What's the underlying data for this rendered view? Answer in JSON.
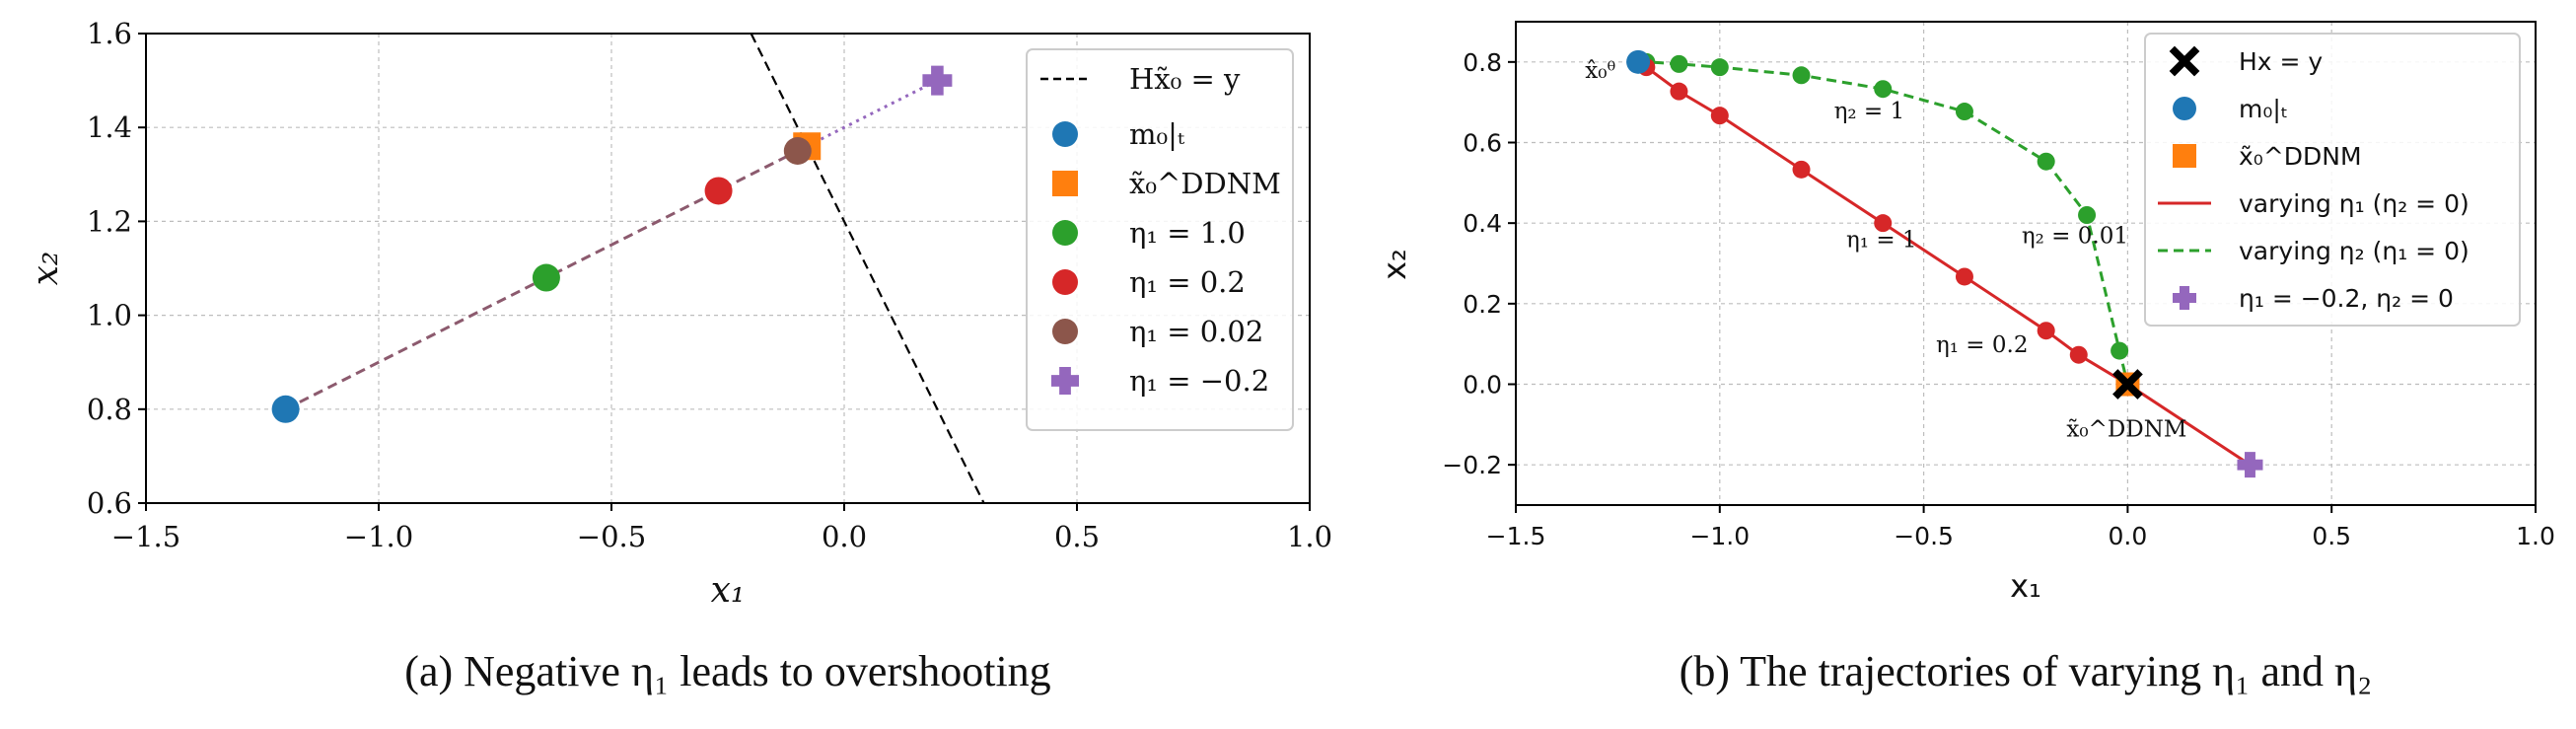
{
  "chart_data": [
    {
      "type": "scatter",
      "panel": "a",
      "caption": "(a) Negative η₁ leads to overshooting",
      "xlabel": "x₁",
      "ylabel": "x₂",
      "xlim": [
        -1.5,
        1.0
      ],
      "ylim": [
        0.6,
        1.6
      ],
      "xticks": [
        "−1.5",
        "−1.0",
        "−0.5",
        "0.0",
        "0.5",
        "1.0"
      ],
      "yticks": [
        "0.6",
        "0.8",
        "1.0",
        "1.2",
        "1.4",
        "1.6"
      ],
      "grid": true,
      "legend_position": "upper-right",
      "lines": [
        {
          "name": "Hx̃₀ = y",
          "style": "dashed",
          "color": "#000000",
          "x": [
            -0.2,
            0.3
          ],
          "y": [
            1.6,
            0.6
          ]
        },
        {
          "name": "trajectory",
          "style": "dashed",
          "color": "#8c5a6e",
          "x": [
            -1.2,
            -0.08
          ],
          "y": [
            0.8,
            1.36
          ]
        },
        {
          "name": "extension",
          "style": "dotted",
          "color": "#9467bd",
          "x": [
            -0.08,
            0.2
          ],
          "y": [
            1.36,
            1.5
          ]
        }
      ],
      "points": [
        {
          "name": "m₀|ₜ",
          "marker": "circle",
          "color": "#1f77b4",
          "x": -1.2,
          "y": 0.8
        },
        {
          "name": "x̃₀^DDNM",
          "marker": "square",
          "color": "#ff7f0e",
          "x": -0.08,
          "y": 1.36
        },
        {
          "name": "η₁ = 1.0",
          "marker": "circle",
          "color": "#2ca02c",
          "x": -0.64,
          "y": 1.08
        },
        {
          "name": "η₁ = 0.2",
          "marker": "circle",
          "color": "#d62728",
          "x": -0.27,
          "y": 1.265
        },
        {
          "name": "η₁ = 0.02",
          "marker": "circle",
          "color": "#8c564b",
          "x": -0.1,
          "y": 1.35
        },
        {
          "name": "η₁ = −0.2",
          "marker": "plus",
          "color": "#9467bd",
          "x": 0.2,
          "y": 1.5
        }
      ]
    },
    {
      "type": "line",
      "panel": "b",
      "caption": "(b) The trajectories of varying η₁ and η₂",
      "xlabel": "x₁",
      "ylabel": "x₂",
      "xlim": [
        -1.5,
        1.0
      ],
      "ylim": [
        -0.3,
        0.9
      ],
      "xticks": [
        "−1.5",
        "−1.0",
        "−0.5",
        "0.0",
        "0.5",
        "1.0"
      ],
      "yticks": [
        "−0.2",
        "0.0",
        "0.2",
        "0.4",
        "0.6",
        "0.8"
      ],
      "grid": true,
      "legend_position": "upper-right",
      "series": [
        {
          "name": "varying η₁ (η₂ = 0)",
          "style": "solid",
          "color": "#d62728",
          "x": [
            -1.2,
            -1.18,
            -1.1,
            -1.0,
            -0.8,
            -0.6,
            -0.4,
            -0.2,
            -0.12,
            0.0,
            0.3
          ],
          "y": [
            0.8,
            0.787,
            0.727,
            0.667,
            0.533,
            0.4,
            0.267,
            0.133,
            0.073,
            0.0,
            -0.2
          ],
          "marked": [
            1,
            2,
            3,
            4,
            5,
            6,
            7,
            8
          ]
        },
        {
          "name": "varying η₂ (η₁ = 0)",
          "style": "dashed",
          "color": "#2ca02c",
          "x": [
            -1.2,
            -1.18,
            -1.1,
            -1.0,
            -0.8,
            -0.6,
            -0.4,
            -0.2,
            -0.1,
            -0.02,
            0.0
          ],
          "y": [
            0.8,
            0.8,
            0.795,
            0.787,
            0.767,
            0.733,
            0.677,
            0.553,
            0.42,
            0.083,
            0.0
          ],
          "marked": [
            1,
            2,
            3,
            4,
            5,
            6,
            7,
            8,
            9
          ]
        }
      ],
      "points": [
        {
          "name": "Hx = y",
          "marker": "x",
          "color": "#000000",
          "x": 0.0,
          "y": 0.0
        },
        {
          "name": "m₀|ₜ",
          "marker": "circle",
          "color": "#1f77b4",
          "x": -1.2,
          "y": 0.8
        },
        {
          "name": "x̃₀^DDNM",
          "marker": "square",
          "color": "#ff7f0e",
          "x": 0.0,
          "y": 0.0
        },
        {
          "name": "η₁ = −0.2, η₂ = 0",
          "marker": "plus",
          "color": "#9467bd",
          "x": 0.3,
          "y": -0.2
        }
      ],
      "annotations": [
        {
          "text": "x̂₀ᶿ",
          "x": -1.33,
          "y": 0.76
        },
        {
          "text": "η₂ = 1",
          "x": -0.72,
          "y": 0.66
        },
        {
          "text": "η₁ = 1",
          "x": -0.69,
          "y": 0.34
        },
        {
          "text": "η₂ = 0.01",
          "x": -0.26,
          "y": 0.35
        },
        {
          "text": "η₁ = 0.2",
          "x": -0.47,
          "y": 0.08
        },
        {
          "text": "x̃₀^DDNM",
          "x": -0.15,
          "y": -0.13
        }
      ]
    }
  ]
}
